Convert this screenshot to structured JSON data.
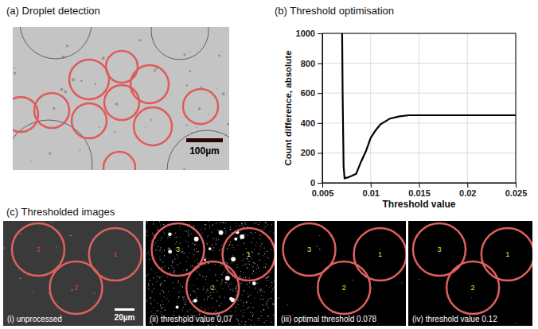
{
  "panel_a": {
    "title": "(a) Droplet detection",
    "scale_bar": "100µm"
  },
  "chart_data": {
    "type": "line",
    "title": "(b) Threshold optimisation",
    "x_label": "Threshold value",
    "y_label": "Count difference, absolute",
    "x": [
      0.00705,
      0.0071,
      0.0072,
      0.0073,
      0.0076,
      0.008,
      0.0085,
      0.009,
      0.0095,
      0.01,
      0.0105,
      0.011,
      0.0115,
      0.012,
      0.013,
      0.014,
      0.015,
      0.02,
      0.025
    ],
    "values": [
      1000,
      600,
      110,
      30,
      35,
      45,
      60,
      140,
      210,
      300,
      350,
      390,
      410,
      430,
      445,
      452,
      452,
      452,
      452
    ],
    "color": "#000000",
    "xlim": [
      0.005,
      0.025
    ],
    "ylim": [
      0,
      1000
    ],
    "xticks": [
      0.005,
      0.01,
      0.015,
      0.02,
      0.025
    ],
    "yticks": [
      0,
      200,
      400,
      600,
      800,
      1000
    ],
    "grid": true
  },
  "panel_c": {
    "title": "(c) Thresholded images",
    "scale_bar": "20µm",
    "images": [
      {
        "caption": "(i) unprocessed",
        "droplets": [
          "3",
          "1",
          "2"
        ]
      },
      {
        "caption": "(ii) threshold value 0.07",
        "droplets": [
          "3",
          "1",
          "2"
        ]
      },
      {
        "caption": "(iii) optimal threshold 0.078",
        "droplets": [
          "3",
          "1",
          "2"
        ]
      },
      {
        "caption": "(iv) threshold value 0.12",
        "droplets": [
          "3",
          "1",
          "2"
        ]
      }
    ]
  }
}
